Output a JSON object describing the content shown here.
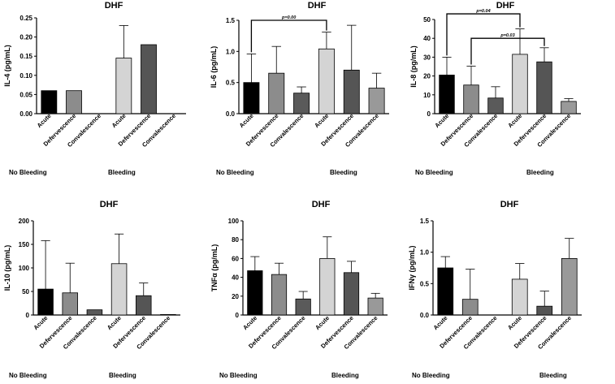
{
  "chart_data": [
    {
      "type": "bar",
      "title": "DHF",
      "ylabel": "IL-4 (pg/mL)",
      "ylim": [
        0,
        0.25
      ],
      "yticks": [
        "0.00",
        "0.05",
        "0.10",
        "0.15",
        "0.20",
        "0.25"
      ],
      "categories": [
        "Acute",
        "Defervescence",
        "Convalescence",
        "Acute",
        "Defervescence",
        "Convalescence"
      ],
      "groups": [
        "No Bleeding",
        "Bleeding"
      ],
      "values": [
        0.06,
        0.06,
        0,
        0.145,
        0.18,
        0
      ],
      "errors": [
        0,
        0,
        0,
        0.085,
        0,
        0
      ],
      "bar_colors": [
        "#000000",
        "#8c8c8c",
        "#5a5a5a",
        "#d4d4d4",
        "#555555",
        "#999999"
      ],
      "annotations": []
    },
    {
      "type": "bar",
      "title": "DHF",
      "ylabel": "IL-6 (pg/mL)",
      "ylim": [
        0,
        1.5
      ],
      "yticks": [
        "0.0",
        "0.5",
        "1.0",
        "1.5"
      ],
      "categories": [
        "Acute",
        "Defervescence",
        "Convalescence",
        "Acute",
        "Defervescence",
        "Convalescence"
      ],
      "groups": [
        "No Bleeding",
        "Bleeding"
      ],
      "values": [
        0.5,
        0.65,
        0.33,
        1.04,
        0.7,
        0.41
      ],
      "errors": [
        0.46,
        0.43,
        0.1,
        0.27,
        0.72,
        0.24
      ],
      "bar_colors": [
        "#000000",
        "#8c8c8c",
        "#5a5a5a",
        "#d4d4d4",
        "#555555",
        "#999999"
      ],
      "annotations": [
        {
          "from": 0,
          "to": 3,
          "label": "p=0.00",
          "y": 1.5
        }
      ]
    },
    {
      "type": "bar",
      "title": "DHF",
      "ylabel": "IL-8 (pg/mL)",
      "ylim": [
        0,
        50
      ],
      "yticks": [
        "0",
        "10",
        "20",
        "30",
        "40",
        "50"
      ],
      "categories": [
        "Acute",
        "Defervescence",
        "Convalescence",
        "Acute",
        "Defervescence",
        "Convalescence"
      ],
      "groups": [
        "No Bleeding",
        "Bleeding"
      ],
      "values": [
        20.5,
        15.2,
        8.3,
        31.5,
        27.5,
        6.5
      ],
      "errors": [
        9.5,
        10,
        6,
        13.5,
        7.5,
        1.5
      ],
      "bar_colors": [
        "#000000",
        "#8c8c8c",
        "#5a5a5a",
        "#d4d4d4",
        "#555555",
        "#999999"
      ],
      "annotations": [
        {
          "from": 0,
          "to": 3,
          "label": "p=0.04",
          "y": 53
        },
        {
          "from": 1,
          "to": 4,
          "label": "p=0.03",
          "y": 40
        }
      ]
    },
    {
      "type": "bar",
      "title": "DHF",
      "ylabel": "IL-10 (pg/mL)",
      "ylim": [
        0,
        200
      ],
      "yticks": [
        "0",
        "50",
        "100",
        "150",
        "200"
      ],
      "categories": [
        "Acute",
        "Defervescence",
        "Convalescence",
        "Acute",
        "Defervescence",
        "Convalescence"
      ],
      "groups": [
        "No Bleeding",
        "Bleeding"
      ],
      "values": [
        55,
        47,
        11,
        109,
        41,
        1
      ],
      "errors": [
        103,
        63,
        0,
        63,
        27,
        0
      ],
      "bar_colors": [
        "#000000",
        "#8c8c8c",
        "#5a5a5a",
        "#d4d4d4",
        "#555555",
        "#999999"
      ],
      "annotations": []
    },
    {
      "type": "bar",
      "title": "DHF",
      "ylabel": "TNFα (pg/mL)",
      "ylim": [
        0,
        100
      ],
      "yticks": [
        "0",
        "20",
        "40",
        "60",
        "80",
        "100"
      ],
      "categories": [
        "Acute",
        "Defervescence",
        "Convalescence",
        "Acute",
        "Defervescence",
        "Convalescence"
      ],
      "groups": [
        "No Bleeding",
        "Bleeding"
      ],
      "values": [
        47,
        43,
        17,
        60,
        45,
        18
      ],
      "errors": [
        15,
        12,
        8,
        23,
        12,
        5
      ],
      "bar_colors": [
        "#000000",
        "#8c8c8c",
        "#5a5a5a",
        "#d4d4d4",
        "#555555",
        "#999999"
      ],
      "annotations": []
    },
    {
      "type": "bar",
      "title": "DHF",
      "ylabel": "IFNγ (pg/mL)",
      "ylim": [
        0,
        1.5
      ],
      "yticks": [
        "0.0",
        "0.5",
        "1.0",
        "1.5"
      ],
      "categories": [
        "Acute",
        "Defervescence",
        "Convalescence",
        "Acute",
        "Defervescence",
        "Convalescence"
      ],
      "groups": [
        "No Bleeding",
        "Bleeding"
      ],
      "values": [
        0.75,
        0.25,
        0,
        0.57,
        0.14,
        0.9
      ],
      "errors": [
        0.18,
        0.48,
        0,
        0.25,
        0.24,
        0.32
      ],
      "bar_colors": [
        "#000000",
        "#8c8c8c",
        "#5a5a5a",
        "#d4d4d4",
        "#555555",
        "#999999"
      ],
      "annotations": []
    }
  ]
}
